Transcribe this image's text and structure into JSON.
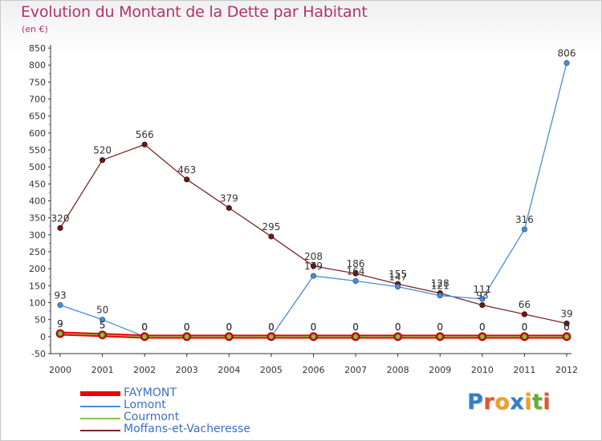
{
  "header": {
    "title": "Evolution du Montant de la Dette par Habitant",
    "subtitle": "(en €)"
  },
  "logo": {
    "letters": [
      "P",
      "r",
      "o",
      "x",
      "i",
      "t",
      "i"
    ],
    "colors": [
      "#2f80c8",
      "#e8542a",
      "#f0a020",
      "#2f80c8",
      "#f0a020",
      "#60b030",
      "#e8542a"
    ]
  },
  "chart_data": {
    "type": "line",
    "title": "Evolution du Montant de la Dette par Habitant",
    "subtitle": "(en €)",
    "xlabel": "",
    "ylabel": "",
    "x": [
      "2000",
      "2001",
      "2002",
      "2003",
      "2004",
      "2005",
      "2006",
      "2007",
      "2008",
      "2009",
      "2010",
      "2011",
      "2012"
    ],
    "ylim": [
      -50,
      850
    ],
    "yticks": [
      "-50",
      "0",
      "50",
      "100",
      "150",
      "200",
      "250",
      "300",
      "350",
      "400",
      "450",
      "500",
      "550",
      "600",
      "650",
      "700",
      "750",
      "800",
      "850"
    ],
    "grid": false,
    "legend_position": "bottom-left",
    "series": [
      {
        "name": "FAYMONT",
        "color": "#ee0000",
        "values": [
          9,
          5,
          0,
          0,
          0,
          0,
          0,
          0,
          0,
          0,
          0,
          0,
          0
        ],
        "labels": [
          "9",
          "5",
          "0",
          "0",
          "0",
          "0",
          "0",
          "0",
          "0",
          "0",
          "0",
          "0",
          "0"
        ]
      },
      {
        "name": "Lomont",
        "color": "#4a8cd4",
        "values": [
          93,
          50,
          0,
          0,
          0,
          0,
          179,
          164,
          147,
          121,
          111,
          316,
          806
        ],
        "labels": [
          "93",
          "50",
          "0",
          "0",
          "0",
          "0",
          "179",
          "164",
          "147",
          "121",
          "111",
          "316",
          "806"
        ]
      },
      {
        "name": "Courmont",
        "color": "#88c050",
        "values": [
          9,
          5,
          0,
          0,
          0,
          0,
          0,
          0,
          0,
          0,
          0,
          0,
          0
        ],
        "labels": [
          "9",
          "5",
          "0",
          "0",
          "0",
          "0",
          "0",
          "0",
          "0",
          "0",
          "0",
          "0",
          "0"
        ]
      },
      {
        "name": "Moffans-et-Vacheresse",
        "color": "#7a2828",
        "values": [
          320,
          520,
          566,
          463,
          379,
          295,
          208,
          186,
          155,
          128,
          93,
          66,
          39
        ],
        "labels": [
          "320",
          "520",
          "566",
          "463",
          "379",
          "295",
          "208",
          "186",
          "155",
          "128",
          "93",
          "66",
          "39"
        ]
      }
    ]
  }
}
